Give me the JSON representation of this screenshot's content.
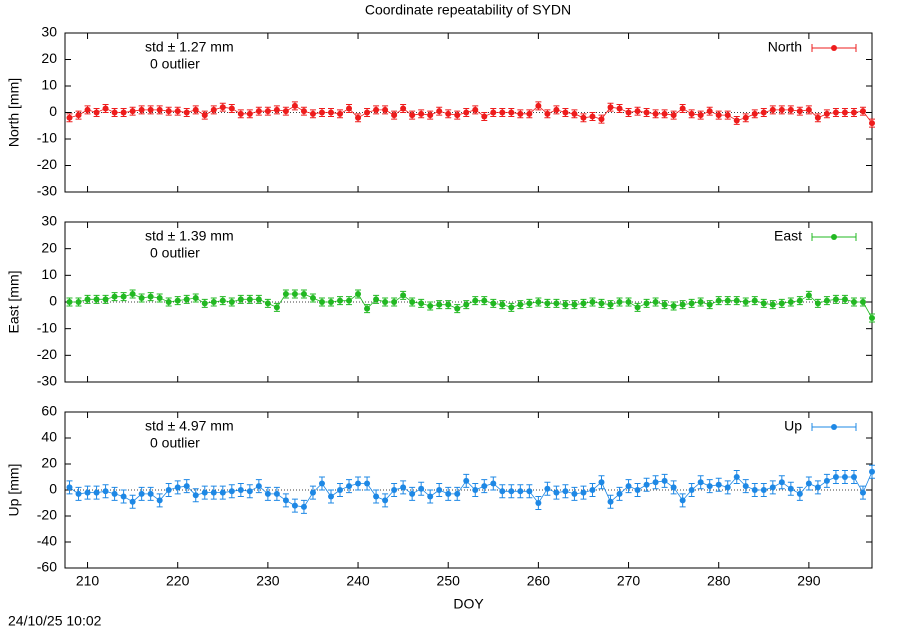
{
  "title": "Coordinate repeatability of SYDN",
  "timestamp": "24/10/25 10:02",
  "chart_data": [
    {
      "type": "errorbar",
      "ylabel": "North [mm]",
      "annotations": [
        "std ± 1.27 mm",
        "0 outlier"
      ],
      "xlim": [
        207.5,
        297
      ],
      "xticks": [
        210,
        220,
        230,
        240,
        250,
        260,
        270,
        280,
        290
      ],
      "ylim": [
        -30,
        30
      ],
      "yticks": [
        -30,
        -20,
        -10,
        0,
        10,
        20,
        30
      ],
      "x": [
        208,
        209,
        210,
        211,
        212,
        213,
        214,
        215,
        216,
        217,
        218,
        219,
        220,
        221,
        222,
        223,
        224,
        225,
        226,
        227,
        228,
        229,
        230,
        231,
        232,
        233,
        234,
        235,
        236,
        237,
        238,
        239,
        240,
        241,
        242,
        243,
        244,
        245,
        246,
        247,
        248,
        249,
        250,
        251,
        252,
        253,
        254,
        255,
        256,
        257,
        258,
        259,
        260,
        261,
        262,
        263,
        264,
        265,
        266,
        267,
        268,
        269,
        270,
        271,
        272,
        273,
        274,
        275,
        276,
        277,
        278,
        279,
        280,
        281,
        282,
        283,
        284,
        285,
        286,
        287,
        288,
        289,
        290,
        291,
        292,
        293,
        294,
        295,
        296,
        297
      ],
      "series": [
        {
          "name": "North",
          "color": "#ee1c1c",
          "error": 1.5,
          "values": [
            -2,
            -1,
            1,
            0,
            1.5,
            0,
            0,
            0.5,
            1,
            1,
            1,
            0.5,
            0.5,
            0,
            1,
            -1,
            1,
            2,
            1.5,
            -0.5,
            -0.5,
            0.5,
            0.5,
            1,
            0.5,
            2.5,
            0.5,
            -0.5,
            0,
            0,
            -0.5,
            1.5,
            -2,
            0,
            1,
            1,
            -1,
            1.5,
            -1,
            -0.5,
            -1,
            0.5,
            -0.5,
            -1,
            0,
            1,
            -1.5,
            0,
            0,
            0,
            -0.5,
            -0.5,
            2.5,
            -0.5,
            1,
            0,
            -0.5,
            -2,
            -1.5,
            -2.5,
            2,
            1.5,
            0,
            0.5,
            0,
            -0.5,
            -0.5,
            -1,
            1.5,
            -0.5,
            -1,
            0.5,
            -1,
            -1,
            -3,
            -2,
            -0.5,
            0,
            1,
            1,
            1,
            0.5,
            1,
            -2,
            -0.5,
            0,
            0,
            0,
            0.5,
            -4
          ]
        }
      ]
    },
    {
      "type": "errorbar",
      "ylabel": "East [mm]",
      "annotations": [
        "std ± 1.39 mm",
        "0 outlier"
      ],
      "xlim": [
        207.5,
        297
      ],
      "xticks": [
        210,
        220,
        230,
        240,
        250,
        260,
        270,
        280,
        290
      ],
      "ylim": [
        -30,
        30
      ],
      "yticks": [
        -30,
        -20,
        -10,
        0,
        10,
        20,
        30
      ],
      "x": [
        208,
        209,
        210,
        211,
        212,
        213,
        214,
        215,
        216,
        217,
        218,
        219,
        220,
        221,
        222,
        223,
        224,
        225,
        226,
        227,
        228,
        229,
        230,
        231,
        232,
        233,
        234,
        235,
        236,
        237,
        238,
        239,
        240,
        241,
        242,
        243,
        244,
        245,
        246,
        247,
        248,
        249,
        250,
        251,
        252,
        253,
        254,
        255,
        256,
        257,
        258,
        259,
        260,
        261,
        262,
        263,
        264,
        265,
        266,
        267,
        268,
        269,
        270,
        271,
        272,
        273,
        274,
        275,
        276,
        277,
        278,
        279,
        280,
        281,
        282,
        283,
        284,
        285,
        286,
        287,
        288,
        289,
        290,
        291,
        292,
        293,
        294,
        295,
        296,
        297
      ],
      "series": [
        {
          "name": "East",
          "color": "#22b822",
          "error": 1.5,
          "values": [
            0,
            0,
            1,
            1,
            1,
            2,
            2,
            3,
            1.5,
            2,
            1.5,
            0,
            0.5,
            1,
            1.5,
            -0.5,
            0,
            0.5,
            0,
            1,
            1,
            1,
            -0.5,
            -2,
            3,
            3,
            3,
            1.5,
            0,
            0,
            0.5,
            0.5,
            3,
            -2.5,
            1,
            0,
            0,
            2.5,
            0,
            -0.5,
            -1.5,
            -1,
            -1,
            -2.5,
            -1,
            0.5,
            0.5,
            -0.5,
            -1,
            -2,
            -1,
            -0.5,
            0,
            -0.5,
            -0.5,
            -1,
            -1,
            -0.5,
            0,
            -0.5,
            -1,
            0,
            0,
            -2,
            -0.5,
            0,
            -1,
            -1.5,
            -1,
            -0.5,
            0,
            -1,
            0.5,
            0.5,
            0.5,
            0,
            0.5,
            -0.5,
            -1,
            -0.5,
            0,
            0.5,
            2.5,
            -0.5,
            0.5,
            1,
            1,
            0,
            0,
            -6
          ]
        }
      ]
    },
    {
      "type": "errorbar",
      "ylabel": "Up [mm]",
      "xlabel": "DOY",
      "annotations": [
        "std ± 4.97 mm",
        "0 outlier"
      ],
      "xlim": [
        207.5,
        297
      ],
      "xticks": [
        210,
        220,
        230,
        240,
        250,
        260,
        270,
        280,
        290
      ],
      "ylim": [
        -60,
        60
      ],
      "yticks": [
        -60,
        -40,
        -20,
        0,
        20,
        40,
        60
      ],
      "x": [
        208,
        209,
        210,
        211,
        212,
        213,
        214,
        215,
        216,
        217,
        218,
        219,
        220,
        221,
        222,
        223,
        224,
        225,
        226,
        227,
        228,
        229,
        230,
        231,
        232,
        233,
        234,
        235,
        236,
        237,
        238,
        239,
        240,
        241,
        242,
        243,
        244,
        245,
        246,
        247,
        248,
        249,
        250,
        251,
        252,
        253,
        254,
        255,
        256,
        257,
        258,
        259,
        260,
        261,
        262,
        263,
        264,
        265,
        266,
        267,
        268,
        269,
        270,
        271,
        272,
        273,
        274,
        275,
        276,
        277,
        278,
        279,
        280,
        281,
        282,
        283,
        284,
        285,
        286,
        287,
        288,
        289,
        290,
        291,
        292,
        293,
        294,
        295,
        296,
        297
      ],
      "series": [
        {
          "name": "Up",
          "color": "#1e88e5",
          "error": 5,
          "values": [
            2,
            -3,
            -2,
            -2,
            -1,
            -3,
            -5,
            -9,
            -3,
            -3,
            -8,
            0,
            2,
            3,
            -4,
            -2,
            -2,
            -2,
            -1,
            0,
            -1,
            3,
            -3,
            -3,
            -8,
            -12,
            -13,
            -2,
            5,
            -5,
            0,
            3,
            5,
            5,
            -5,
            -8,
            0,
            2,
            -3,
            1,
            -5,
            0,
            -3,
            -3,
            7,
            0,
            3,
            5,
            -1,
            -1,
            -1,
            -1,
            -10,
            1,
            -2,
            -1,
            -3,
            -2,
            0,
            6,
            -9,
            -3,
            3,
            0,
            4,
            6,
            7,
            2,
            -8,
            0,
            6,
            3,
            4,
            2,
            10,
            3,
            0,
            0,
            2,
            6,
            1,
            -3,
            5,
            2,
            7,
            10,
            10,
            10,
            -2,
            14
          ]
        }
      ]
    }
  ]
}
